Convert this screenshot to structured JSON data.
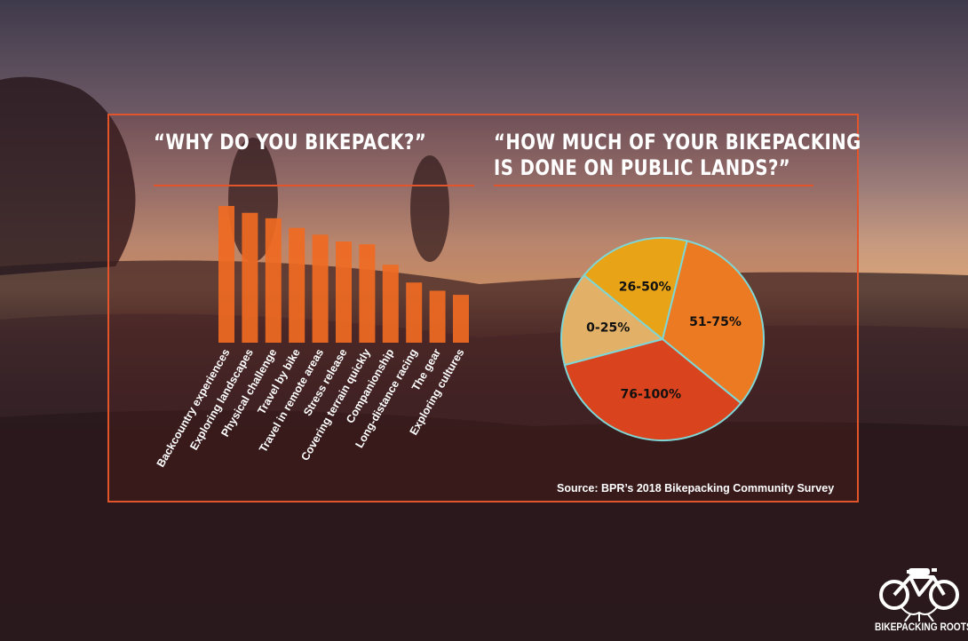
{
  "left_title": "“WHY DO YOU BIKEPACK?”",
  "right_title_line1": "“HOW MUCH OF YOUR BIKEPACKING",
  "right_title_line2": "IS DONE ON PUBLIC LANDS?”",
  "source": "Source: BPR’s 2018 Bikepacking Community Survey",
  "logo_text": "BIKEPACKING ROOTS",
  "colors": {
    "accent": "#e2542a",
    "bar": "#f06a22",
    "slice_51_75": "#ec7a22",
    "slice_76_100": "#d9431d",
    "slice_0_25": "#e2b066",
    "slice_26_50": "#e8a317",
    "pie_stroke": "#7fd6d6"
  },
  "chart_data": [
    {
      "type": "bar",
      "title": "“WHY DO YOU BIKEPACK?”",
      "categories": [
        "Backcountry experiences",
        "Exploring landscapes",
        "Physical challenge",
        "Travel by bike",
        "Travel in remote areas",
        "Stress release",
        "Covering terrain quickly",
        "Companionship",
        "Long-distance racing",
        "The gear",
        "Exploring cultures"
      ],
      "values": [
        100,
        95,
        91,
        84,
        79,
        74,
        72,
        57,
        44,
        38,
        35
      ],
      "ylim": [
        0,
        100
      ],
      "grid": false
    },
    {
      "type": "pie",
      "title": "“HOW MUCH OF YOUR BIKEPACKING IS DONE ON PUBLIC LANDS?”",
      "categories": [
        "51-75%",
        "76-100%",
        "0-25%",
        "26-50%"
      ],
      "values": [
        32,
        35,
        15,
        18
      ]
    }
  ]
}
